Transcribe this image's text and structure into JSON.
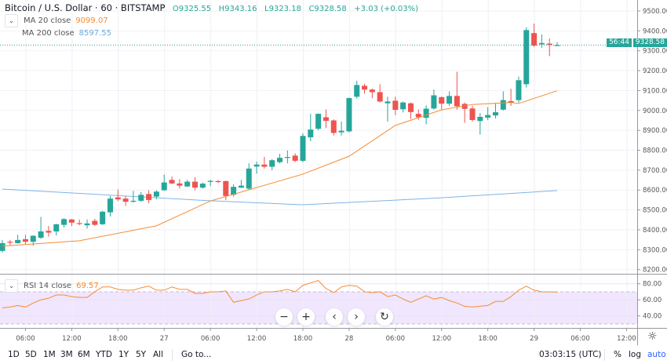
{
  "header": {
    "symbol": "Bitcoin / U.S. Dollar · 60 · BITSTAMP",
    "open": "O9325.55",
    "high": "H9343.16",
    "low": "L9323.18",
    "close": "C9328.58",
    "change": "+3.03 (+0.03%)"
  },
  "indicators": {
    "ma20": {
      "label": "MA 20 close",
      "value": "9099.07",
      "color": "#f68c34"
    },
    "ma200": {
      "label": "MA 200 close",
      "value": "8597.55",
      "color": "#7fb3e6"
    },
    "rsi": {
      "label": "RSI 14 close",
      "value": "69.57",
      "color": "#f68c34"
    }
  },
  "price_scale": {
    "last_price": "9328.58",
    "countdown": "56:44",
    "rsi_ticks": [
      "80.00",
      "60.00",
      "40.00"
    ]
  },
  "nav": {
    "zoom_out": "−",
    "zoom_in": "+",
    "left": "‹",
    "right": "›",
    "reset": "↻"
  },
  "bottom_bar": {
    "periods": [
      "1D",
      "5D",
      "1M",
      "3M",
      "6M",
      "YTD",
      "1Y",
      "5Y",
      "All"
    ],
    "goto": "Go to...",
    "clock": "03:03:15 (UTC)",
    "percent": "%",
    "log": "log",
    "auto": "auto"
  },
  "colors": {
    "up": "#26a69a",
    "down": "#ef5350",
    "rsi_band": "#f0e6fd",
    "auto": "#2962ff"
  },
  "chart_data": {
    "type": "candlestick",
    "title": "Bitcoin / U.S. Dollar · 60 · BITSTAMP",
    "x_tick_labels": [
      "06:00",
      "12:00",
      "18:00",
      "27",
      "06:00",
      "12:00",
      "18:00",
      "28",
      "06:00",
      "12:00",
      "18:00",
      "29",
      "06:00",
      "12:00"
    ],
    "y_ticks": [
      "9500.00",
      "9400.00",
      "9300.00",
      "9200.00",
      "9100.00",
      "9000.00",
      "8900.00",
      "8800.00",
      "8700.00",
      "8600.00",
      "8500.00",
      "8400.00",
      "8300.00",
      "8200.00"
    ],
    "ylim": [
      8200,
      9500
    ],
    "grid": true,
    "ohlc": [
      [
        8294,
        8349,
        8287,
        8333
      ],
      [
        8340,
        8349,
        8320,
        8336
      ],
      [
        8333,
        8375,
        8330,
        8349
      ],
      [
        8353,
        8375,
        8327,
        8340
      ],
      [
        8340,
        8372,
        8320,
        8370
      ],
      [
        8360,
        8465,
        8355,
        8392
      ],
      [
        8395,
        8419,
        8366,
        8386
      ],
      [
        8392,
        8430,
        8372,
        8428
      ],
      [
        8425,
        8458,
        8412,
        8454
      ],
      [
        8452,
        8455,
        8419,
        8436
      ],
      [
        8434,
        8452,
        8423,
        8432
      ],
      [
        8423,
        8452,
        8406,
        8432
      ],
      [
        8445,
        8455,
        8420,
        8425
      ],
      [
        8428,
        8495,
        8425,
        8491
      ],
      [
        8488,
        8570,
        8467,
        8557
      ],
      [
        8563,
        8603,
        8544,
        8553
      ],
      [
        8557,
        8570,
        8520,
        8541
      ],
      [
        8541,
        8596,
        8537,
        8546
      ],
      [
        8546,
        8590,
        8540,
        8576
      ],
      [
        8580,
        8599,
        8533,
        8550
      ],
      [
        8567,
        8599,
        8554,
        8592
      ],
      [
        8599,
        8678,
        8596,
        8638
      ],
      [
        8651,
        8668,
        8630,
        8633
      ],
      [
        8633,
        8655,
        8607,
        8622
      ],
      [
        8618,
        8651,
        8615,
        8642
      ],
      [
        8642,
        8665,
        8599,
        8612
      ],
      [
        8612,
        8638,
        8607,
        8632
      ],
      [
        8641,
        8651,
        8620,
        8646
      ],
      [
        8645,
        8650,
        8635,
        8640
      ],
      [
        8645,
        8647,
        8550,
        8570
      ],
      [
        8576,
        8629,
        8567,
        8616
      ],
      [
        8612,
        8651,
        8610,
        8622
      ],
      [
        8607,
        8734,
        8600,
        8708
      ],
      [
        8718,
        8743,
        8682,
        8728
      ],
      [
        8728,
        8767,
        8708,
        8717
      ],
      [
        8717,
        8755,
        8700,
        8750
      ],
      [
        8740,
        8782,
        8734,
        8762
      ],
      [
        8762,
        8799,
        8734,
        8766
      ],
      [
        8773,
        8785,
        8740,
        8747
      ],
      [
        8747,
        8885,
        8740,
        8872
      ],
      [
        8865,
        8983,
        8845,
        8904
      ],
      [
        8908,
        8985,
        8900,
        8983
      ],
      [
        8966,
        9005,
        8911,
        8948
      ],
      [
        8950,
        8955,
        8874,
        8887
      ],
      [
        8890,
        8944,
        8874,
        8898
      ],
      [
        8895,
        9065,
        8890,
        9062
      ],
      [
        9069,
        9150,
        9060,
        9128
      ],
      [
        9124,
        9134,
        9084,
        9105
      ],
      [
        9105,
        9110,
        9062,
        9092
      ],
      [
        9092,
        9132,
        9040,
        9045
      ],
      [
        9036,
        9069,
        8944,
        9045
      ],
      [
        9049,
        9069,
        8977,
        9003
      ],
      [
        9006,
        9045,
        8990,
        9040
      ],
      [
        9036,
        9040,
        8957,
        8992
      ],
      [
        8983,
        9005,
        8953,
        8966
      ],
      [
        8963,
        9026,
        8930,
        9009
      ],
      [
        9010,
        9105,
        9004,
        9076
      ],
      [
        9067,
        9070,
        9004,
        9034
      ],
      [
        9034,
        9096,
        9023,
        9073
      ],
      [
        9073,
        9194,
        9004,
        9021
      ],
      [
        9033,
        9040,
        8938,
        9008
      ],
      [
        9010,
        9023,
        8944,
        8952
      ],
      [
        8947,
        8987,
        8879,
        8968
      ],
      [
        8964,
        9017,
        8951,
        8977
      ],
      [
        8975,
        9034,
        8960,
        8991
      ],
      [
        9004,
        9096,
        9000,
        9052
      ],
      [
        9047,
        9109,
        9023,
        9039
      ],
      [
        9052,
        9170,
        9039,
        9152
      ],
      [
        9132,
        9418,
        9115,
        9404
      ],
      [
        9389,
        9437,
        9319,
        9326
      ],
      [
        9332,
        9382,
        9315,
        9339
      ],
      [
        9336,
        9362,
        9273,
        9330
      ],
      [
        9325.55,
        9343.16,
        9323.18,
        9328.58
      ]
    ],
    "ma20": [
      [
        0,
        8318
      ],
      [
        10,
        8345
      ],
      [
        20,
        8420
      ],
      [
        27,
        8545
      ],
      [
        39,
        8680
      ],
      [
        45,
        8770
      ],
      [
        51,
        8925
      ],
      [
        57,
        9003
      ],
      [
        61,
        9030
      ],
      [
        66,
        9040
      ],
      [
        67,
        9035
      ],
      [
        72,
        9099.07
      ]
    ],
    "ma200": [
      [
        0,
        8605
      ],
      [
        27,
        8546
      ],
      [
        39,
        8526
      ],
      [
        57,
        8561
      ],
      [
        72,
        8597.55
      ]
    ],
    "rsi": [
      50,
      51,
      53,
      51,
      56,
      60,
      62,
      66,
      66,
      64,
      63,
      63,
      70,
      76,
      76,
      73,
      72,
      72,
      75,
      77,
      72,
      72,
      76,
      73,
      73,
      68,
      68,
      70,
      70,
      71,
      57,
      59,
      61,
      66,
      70,
      70,
      71,
      73,
      70,
      78,
      81,
      84,
      74,
      69,
      76,
      78,
      77,
      70,
      69,
      70,
      64,
      66,
      61,
      57,
      61,
      65,
      61,
      63,
      59,
      56,
      52,
      51,
      52,
      53,
      58,
      58,
      64,
      72,
      77,
      72,
      70,
      70,
      69.57
    ],
    "rsi_levels": [
      70,
      30
    ]
  }
}
